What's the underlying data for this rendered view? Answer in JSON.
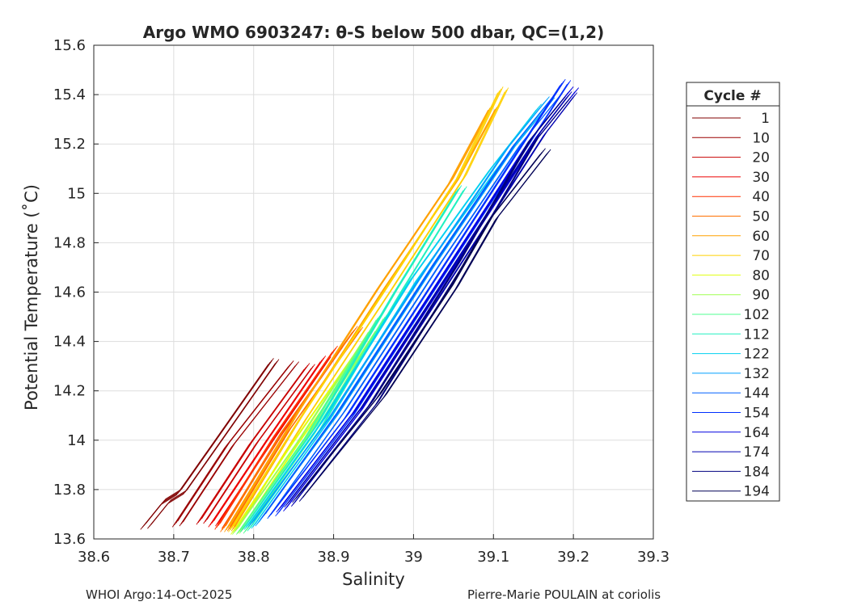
{
  "chart_data": {
    "type": "line",
    "title": "Argo WMO 6903247: θ-S below 500 dbar,  QC=(1,2)",
    "xlabel": "Salinity",
    "ylabel": "Potential Temperature (˚C)",
    "xlim": [
      38.6,
      39.3
    ],
    "ylim": [
      13.6,
      15.6
    ],
    "xticks": [
      "38.6",
      "38.7",
      "38.8",
      "38.9",
      "39",
      "39.1",
      "39.2",
      "39.3"
    ],
    "yticks": [
      "13.6",
      "13.8",
      "14",
      "14.2",
      "14.4",
      "14.6",
      "14.8",
      "15",
      "15.2",
      "15.4",
      "15.6"
    ],
    "grid": true,
    "legend": {
      "title": "Cycle #",
      "placement": "outside-right",
      "entries": [
        "1",
        "10",
        "20",
        "30",
        "40",
        "50",
        "60",
        "70",
        "80",
        "90",
        "102",
        "112",
        "122",
        "132",
        "144",
        "154",
        "164",
        "174",
        "184",
        "194"
      ]
    },
    "series": [
      {
        "name": "1",
        "color": "#800000",
        "x": [
          38.665,
          38.69,
          38.71,
          38.76,
          38.825
        ],
        "y": [
          13.65,
          13.75,
          13.79,
          14.02,
          14.32
        ]
      },
      {
        "name": "10",
        "color": "#9a0000",
        "x": [
          38.705,
          38.77,
          38.85
        ],
        "y": [
          13.66,
          13.98,
          14.31
        ]
      },
      {
        "name": "20",
        "color": "#c80000",
        "x": [
          38.735,
          38.8,
          38.87
        ],
        "y": [
          13.67,
          13.99,
          14.3
        ]
      },
      {
        "name": "30",
        "color": "#ee0000",
        "x": [
          38.75,
          38.82,
          38.89
        ],
        "y": [
          13.66,
          14.0,
          14.33
        ]
      },
      {
        "name": "40",
        "color": "#ff3000",
        "x": [
          38.758,
          38.83,
          38.905
        ],
        "y": [
          13.65,
          14.02,
          14.37
        ]
      },
      {
        "name": "50",
        "color": "#ff7000",
        "x": [
          38.765,
          38.84,
          38.93
        ],
        "y": [
          13.64,
          14.04,
          14.45
        ]
      },
      {
        "name": "60",
        "color": "#ffa000",
        "x": [
          38.77,
          38.86,
          38.96,
          39.05,
          39.1
        ],
        "y": [
          13.64,
          14.12,
          14.62,
          15.05,
          15.35
        ]
      },
      {
        "name": "70",
        "color": "#ffd000",
        "x": [
          38.775,
          38.86,
          38.97,
          39.06,
          39.112
        ],
        "y": [
          13.64,
          14.08,
          14.62,
          15.07,
          15.42
        ]
      },
      {
        "name": "80",
        "color": "#e0ff10",
        "x": [
          38.778,
          38.85,
          38.93
        ],
        "y": [
          13.63,
          13.98,
          14.35
        ]
      },
      {
        "name": "90",
        "color": "#a0ff50",
        "x": [
          38.78,
          38.86,
          38.95
        ],
        "y": [
          13.63,
          14.0,
          14.45
        ]
      },
      {
        "name": "102",
        "color": "#50ff90",
        "x": [
          38.785,
          38.87,
          38.96
        ],
        "y": [
          13.63,
          14.02,
          14.5
        ]
      },
      {
        "name": "112",
        "color": "#20f0c0",
        "x": [
          38.79,
          38.88,
          38.98,
          39.06
        ],
        "y": [
          13.64,
          14.05,
          14.6,
          15.02
        ]
      },
      {
        "name": "122",
        "color": "#00d0f0",
        "x": [
          38.795,
          38.89,
          39.0,
          39.1,
          39.16
        ],
        "y": [
          13.65,
          14.08,
          14.65,
          15.1,
          15.35
        ]
      },
      {
        "name": "132",
        "color": "#00a0ff",
        "x": [
          38.8,
          38.9,
          39.02,
          39.12,
          39.17
        ],
        "y": [
          13.66,
          14.1,
          14.7,
          15.18,
          15.38
        ]
      },
      {
        "name": "144",
        "color": "#0060ff",
        "x": [
          38.815,
          38.91,
          39.03,
          39.13,
          39.18
        ],
        "y": [
          13.69,
          14.12,
          14.72,
          15.2,
          15.4
        ]
      },
      {
        "name": "154",
        "color": "#0030ff",
        "x": [
          38.825,
          38.92,
          39.04,
          39.14,
          39.19
        ],
        "y": [
          13.7,
          14.1,
          14.7,
          15.2,
          15.45
        ]
      },
      {
        "name": "164",
        "color": "#0000e0",
        "x": [
          38.835,
          38.93,
          39.05,
          39.15,
          39.2
        ],
        "y": [
          13.72,
          14.12,
          14.72,
          15.22,
          15.42
        ]
      },
      {
        "name": "174",
        "color": "#0000b0",
        "x": [
          38.845,
          38.94,
          39.06,
          39.16,
          39.198
        ],
        "y": [
          13.74,
          14.14,
          14.74,
          15.24,
          15.4
        ]
      },
      {
        "name": "184",
        "color": "#000080",
        "x": [
          38.855,
          38.95,
          39.06,
          39.15,
          39.19
        ],
        "y": [
          13.76,
          14.15,
          14.72,
          15.22,
          15.38
        ]
      },
      {
        "name": "194",
        "color": "#000055",
        "x": [
          38.86,
          38.96,
          39.05,
          39.1,
          39.165
        ],
        "y": [
          13.78,
          14.18,
          14.62,
          14.9,
          15.17
        ]
      }
    ]
  },
  "footer": {
    "left": "WHOI Argo:14-Oct-2025",
    "right": "Pierre-Marie POULAIN at coriolis"
  }
}
